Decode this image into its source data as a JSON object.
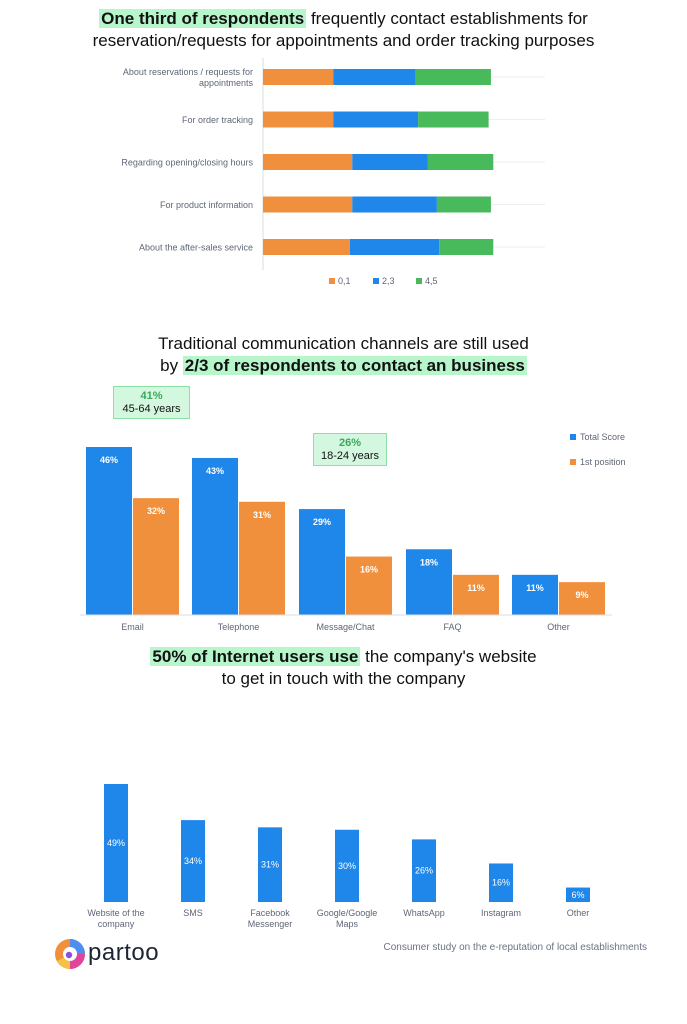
{
  "section1": {
    "title_highlight": "One third of respondents",
    "title_rest": " frequently contact establishments for",
    "title_line2": "reservation/requests for appointments and order tracking purposes"
  },
  "section2": {
    "title_line1": "Traditional communication channels are still used",
    "title_prefix": "by ",
    "title_highlight": "2/3 of respondents to contact an business",
    "callouts": [
      {
        "pct": "41%",
        "age": "45-64 years"
      },
      {
        "pct": "26%",
        "age": "18-24 years"
      }
    ]
  },
  "section3": {
    "title_highlight": "50% of Internet users use",
    "title_rest": " the company's website",
    "title_line2": "to get in touch with the company"
  },
  "footer": {
    "logo": "partoo",
    "study": "Consumer study on the e-reputation of local establishments"
  },
  "colors": {
    "blue": "#1f86ea",
    "orange": "#f0903d",
    "green": "#49ba5c",
    "highlight": "#b7f5cb"
  },
  "chart_data": [
    {
      "type": "bar",
      "orientation": "horizontal",
      "stacked": true,
      "categories": [
        "About reservations / requests for appointments",
        "For order tracking",
        "Regarding opening/closing hours",
        "For product information",
        "About the after-sales service"
      ],
      "series": [
        {
          "name": "0,1",
          "values": [
            30,
            30,
            38,
            38,
            37
          ]
        },
        {
          "name": "2,3",
          "values": [
            35,
            36,
            32,
            36,
            38
          ]
        },
        {
          "name": "4,5",
          "values": [
            32,
            30,
            28,
            23,
            23
          ]
        }
      ],
      "legend": "bottom-center",
      "grid": false
    },
    {
      "type": "bar",
      "categories": [
        "Email",
        "Telephone",
        "Message/Chat",
        "FAQ",
        "Other"
      ],
      "series": [
        {
          "name": "Total Score",
          "values": [
            46,
            43,
            29,
            18,
            11
          ]
        },
        {
          "name": "1st position",
          "values": [
            32,
            31,
            16,
            11,
            9
          ]
        }
      ],
      "value_labels": [
        [
          "46%",
          "43%",
          "29%",
          "18%",
          "11%"
        ],
        [
          "32%",
          "31%",
          "16%",
          "11%",
          "9%"
        ]
      ],
      "ylim": [
        0,
        46
      ],
      "legend": "top-right",
      "grid": false
    },
    {
      "type": "bar",
      "categories": [
        "Website of the company",
        "SMS",
        "Facebook Messenger",
        "Google/Google Maps",
        "WhatsApp",
        "Instagram",
        "Other"
      ],
      "category_lines": [
        [
          "Website of the",
          "company"
        ],
        [
          "SMS"
        ],
        [
          "Facebook",
          "Messenger"
        ],
        [
          "Google/Google",
          "Maps"
        ],
        [
          "WhatsApp"
        ],
        [
          "Instagram"
        ],
        [
          "Other"
        ]
      ],
      "values": [
        49,
        34,
        31,
        30,
        26,
        16,
        6
      ],
      "value_labels": [
        "49%",
        "34%",
        "31%",
        "30%",
        "26%",
        "16%",
        "6%"
      ],
      "ylim": [
        0,
        49
      ],
      "grid": false
    }
  ]
}
